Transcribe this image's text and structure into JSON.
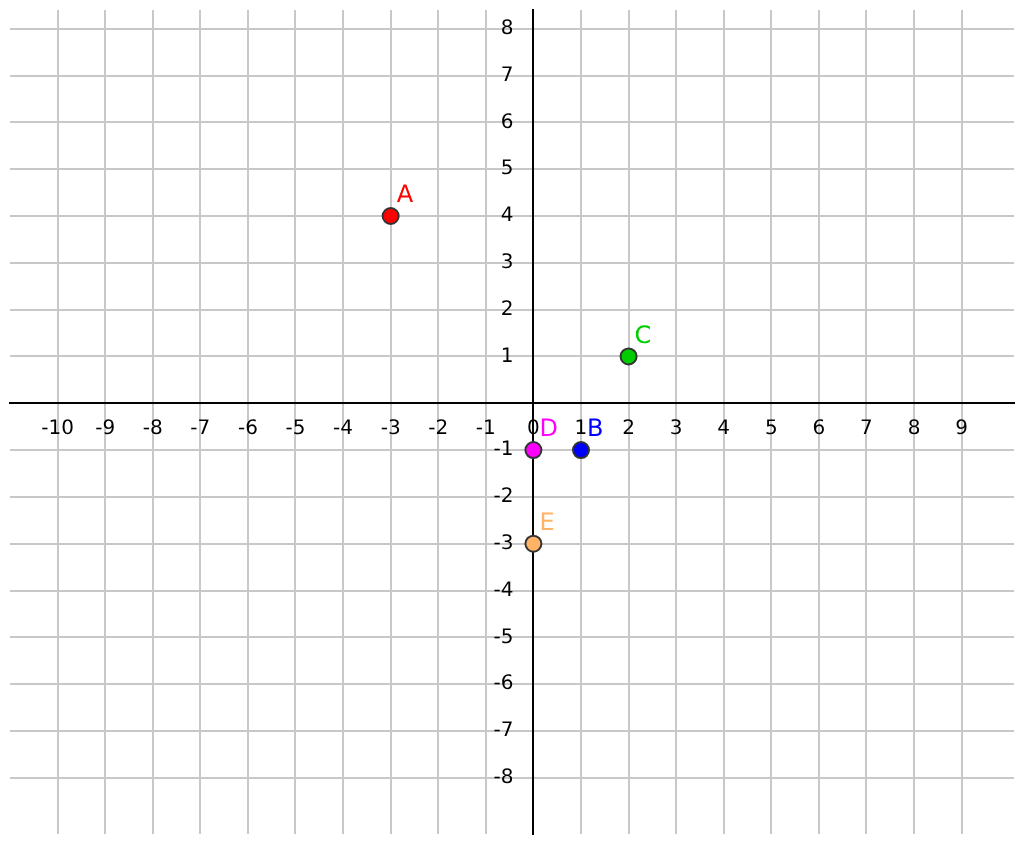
{
  "chart_data": {
    "type": "scatter",
    "marker": "circle",
    "grid": true,
    "legend": false,
    "xlim": [
      -11,
      10.1
    ],
    "ylim": [
      -9.2,
      8.4
    ],
    "xticks": [
      -10,
      -9,
      -8,
      -7,
      -6,
      -5,
      -4,
      -3,
      -2,
      -1,
      0,
      1,
      2,
      3,
      4,
      5,
      6,
      7,
      8,
      9
    ],
    "yticks": [
      -8,
      -7,
      -6,
      -5,
      -4,
      -3,
      -2,
      -1,
      {
        "value": 0,
        "label": null
      },
      1,
      2,
      3,
      4,
      5,
      6,
      7,
      8
    ],
    "series": [
      {
        "name": "A",
        "color": "#ff0000",
        "x": [
          -3
        ],
        "values": [
          4
        ]
      },
      {
        "name": "B",
        "color": "#0000ff",
        "x": [
          1
        ],
        "values": [
          -1
        ]
      },
      {
        "name": "C",
        "color": "#00cc00",
        "x": [
          2
        ],
        "values": [
          1
        ]
      },
      {
        "name": "D",
        "color": "#ff00ff",
        "x": [
          0
        ],
        "values": [
          -1
        ]
      },
      {
        "name": "E",
        "color": "#ffb366",
        "x": [
          0
        ],
        "values": [
          -3
        ]
      }
    ]
  }
}
